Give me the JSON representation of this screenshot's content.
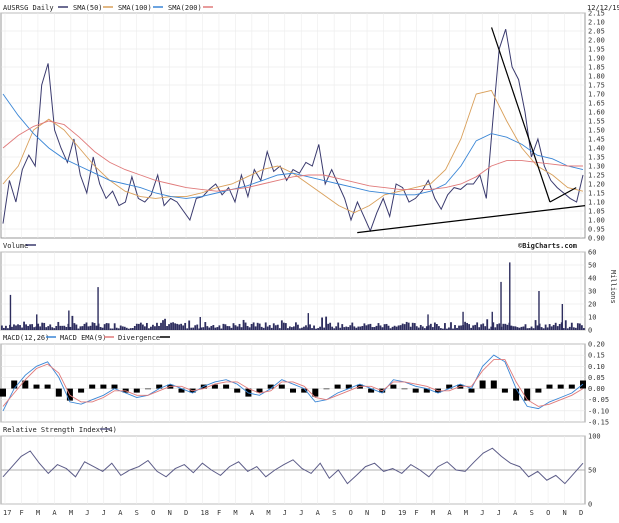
{
  "header": {
    "ticker": "AUSRSG Daily",
    "legend": [
      {
        "label": "SMA(50)",
        "color": "#d9a05b"
      },
      {
        "label": "SMA(100)",
        "color": "#3a86d6"
      },
      {
        "label": "SMA(200)",
        "color": "#e07a7a"
      }
    ],
    "date": "12/12/19"
  },
  "panels": {
    "volume": {
      "title": "Volume",
      "brand": "©BigCharts.com",
      "unit": "Millions"
    },
    "macd": {
      "legend": [
        {
          "label": "MACD(12,26)",
          "color": "#3a86d6"
        },
        {
          "label": "MACD EMA(9)",
          "color": "#e07a7a"
        },
        {
          "label": "Divergence",
          "color": "#000000"
        }
      ]
    },
    "rsi": {
      "title": "Relative Strength Index(14)"
    }
  },
  "chart_data": [
    {
      "type": "line",
      "panel": "price",
      "ylim": [
        0.9,
        2.15
      ],
      "yticks": [
        "2.15",
        "2.10",
        "2.05",
        "2.00",
        "1.95",
        "1.90",
        "1.85",
        "1.80",
        "1.75",
        "1.70",
        "1.65",
        "1.60",
        "1.55",
        "1.50",
        "1.45",
        "1.40",
        "1.35",
        "1.30",
        "1.25",
        "1.20",
        "1.15",
        "1.10",
        "1.05",
        "1.00",
        "0.95",
        "0.90"
      ],
      "xticks": [
        "17",
        "F",
        "M",
        "A",
        "M",
        "J",
        "J",
        "A",
        "S",
        "O",
        "N",
        "D",
        "18",
        "F",
        "M",
        "A",
        "M",
        "J",
        "J",
        "A",
        "S",
        "O",
        "N",
        "D",
        "19",
        "F",
        "M",
        "A",
        "M",
        "J",
        "J",
        "A",
        "S",
        "O",
        "N",
        "D"
      ],
      "series": [
        {
          "name": "AUSRSG",
          "color": "#3a3a6e",
          "values": [
            0.98,
            1.22,
            1.1,
            1.28,
            1.36,
            1.3,
            1.75,
            1.87,
            1.5,
            1.4,
            1.32,
            1.45,
            1.25,
            1.15,
            1.35,
            1.2,
            1.12,
            1.16,
            1.08,
            1.1,
            1.24,
            1.12,
            1.1,
            1.14,
            1.25,
            1.08,
            1.12,
            1.1,
            1.05,
            1.0,
            1.12,
            1.13,
            1.17,
            1.2,
            1.14,
            1.18,
            1.1,
            1.25,
            1.13,
            1.28,
            1.22,
            1.38,
            1.27,
            1.3,
            1.22,
            1.28,
            1.26,
            1.32,
            1.3,
            1.42,
            1.2,
            1.28,
            1.2,
            1.12,
            1.0,
            1.1,
            1.02,
            0.94,
            1.04,
            1.12,
            1.02,
            1.2,
            1.18,
            1.1,
            1.12,
            1.16,
            1.22,
            1.12,
            1.06,
            1.14,
            1.18,
            1.17,
            1.2,
            1.2,
            1.25,
            1.12,
            1.55,
            1.95,
            2.06,
            1.85,
            1.78,
            1.6,
            1.35,
            1.45,
            1.3,
            1.22,
            1.18,
            1.15,
            1.12,
            1.1,
            1.25
          ]
        },
        {
          "name": "SMA(50)",
          "color": "#d9a05b",
          "values": [
            1.2,
            1.3,
            1.5,
            1.56,
            1.5,
            1.4,
            1.3,
            1.22,
            1.16,
            1.13,
            1.12,
            1.13,
            1.13,
            1.15,
            1.18,
            1.2,
            1.24,
            1.28,
            1.3,
            1.26,
            1.2,
            1.14,
            1.08,
            1.04,
            1.08,
            1.14,
            1.16,
            1.18,
            1.2,
            1.28,
            1.45,
            1.7,
            1.72,
            1.55,
            1.4,
            1.3,
            1.25,
            1.18,
            1.16
          ]
        },
        {
          "name": "SMA(100)",
          "color": "#3a86d6",
          "values": [
            1.7,
            1.58,
            1.48,
            1.4,
            1.34,
            1.3,
            1.26,
            1.22,
            1.2,
            1.18,
            1.15,
            1.13,
            1.12,
            1.13,
            1.15,
            1.17,
            1.19,
            1.22,
            1.25,
            1.26,
            1.24,
            1.22,
            1.2,
            1.18,
            1.16,
            1.15,
            1.14,
            1.14,
            1.16,
            1.2,
            1.3,
            1.44,
            1.48,
            1.46,
            1.42,
            1.36,
            1.34,
            1.3,
            1.28
          ]
        },
        {
          "name": "SMA(200)",
          "color": "#e07a7a",
          "values": [
            1.4,
            1.47,
            1.52,
            1.55,
            1.53,
            1.46,
            1.38,
            1.32,
            1.28,
            1.25,
            1.22,
            1.2,
            1.18,
            1.17,
            1.16,
            1.17,
            1.18,
            1.2,
            1.22,
            1.24,
            1.25,
            1.25,
            1.23,
            1.21,
            1.19,
            1.18,
            1.17,
            1.17,
            1.17,
            1.18,
            1.2,
            1.24,
            1.3,
            1.33,
            1.33,
            1.32,
            1.31,
            1.3,
            1.3
          ]
        }
      ],
      "trendlines": [
        {
          "from": [
            0.61,
            0.93
          ],
          "to": [
            1.0,
            1.08
          ]
        },
        {
          "from": [
            0.84,
            2.07
          ],
          "to": [
            0.94,
            1.1
          ]
        },
        {
          "from": [
            0.94,
            1.1
          ],
          "to": [
            0.985,
            1.18
          ]
        }
      ]
    },
    {
      "type": "bar",
      "panel": "volume",
      "ylim": [
        0,
        60
      ],
      "yticks": [
        "60",
        "50",
        "40",
        "30",
        "20",
        "10",
        "0"
      ],
      "spikes": [
        {
          "x": 0.015,
          "value": 27
        },
        {
          "x": 0.06,
          "value": 12
        },
        {
          "x": 0.115,
          "value": 15
        },
        {
          "x": 0.165,
          "value": 33
        },
        {
          "x": 0.34,
          "value": 10
        },
        {
          "x": 0.525,
          "value": 13
        },
        {
          "x": 0.73,
          "value": 12
        },
        {
          "x": 0.79,
          "value": 14
        },
        {
          "x": 0.84,
          "value": 14
        },
        {
          "x": 0.855,
          "value": 37
        },
        {
          "x": 0.87,
          "value": 52
        },
        {
          "x": 0.92,
          "value": 30
        },
        {
          "x": 0.96,
          "value": 20
        }
      ]
    },
    {
      "type": "line",
      "panel": "macd",
      "ylim": [
        -0.15,
        0.2
      ],
      "yticks": [
        "0.20",
        "0.15",
        "0.10",
        "0.05",
        "0.00",
        "-0.05",
        "-0.10",
        "-0.15"
      ],
      "series": [
        {
          "name": "MACD(12,26)",
          "color": "#3a86d6",
          "values": [
            -0.1,
            0.0,
            0.06,
            0.1,
            0.12,
            0.05,
            -0.06,
            -0.07,
            -0.05,
            -0.03,
            0.0,
            -0.02,
            -0.04,
            -0.03,
            0.0,
            0.02,
            0.0,
            -0.02,
            0.01,
            0.03,
            0.04,
            0.02,
            -0.02,
            -0.03,
            0.0,
            0.04,
            0.02,
            0.0,
            -0.06,
            -0.05,
            -0.02,
            0.0,
            0.02,
            0.0,
            -0.02,
            0.04,
            0.03,
            0.01,
            0.0,
            -0.02,
            0.0,
            0.02,
            0.0,
            0.1,
            0.15,
            0.12,
            0.0,
            -0.08,
            -0.09,
            -0.06,
            -0.04,
            -0.02,
            0.02
          ]
        },
        {
          "name": "MACD EMA(9)",
          "color": "#e07a7a",
          "values": [
            -0.08,
            -0.02,
            0.04,
            0.09,
            0.11,
            0.07,
            -0.03,
            -0.06,
            -0.06,
            -0.04,
            -0.01,
            -0.01,
            -0.03,
            -0.03,
            -0.01,
            0.01,
            0.01,
            -0.01,
            0.0,
            0.02,
            0.03,
            0.03,
            0.0,
            -0.02,
            -0.01,
            0.03,
            0.03,
            0.01,
            -0.04,
            -0.05,
            -0.03,
            -0.01,
            0.01,
            0.01,
            -0.01,
            0.03,
            0.03,
            0.02,
            0.01,
            -0.01,
            -0.01,
            0.01,
            0.01,
            0.08,
            0.13,
            0.13,
            0.03,
            -0.05,
            -0.08,
            -0.07,
            -0.05,
            -0.03,
            0.0
          ]
        }
      ]
    },
    {
      "type": "line",
      "panel": "rsi",
      "ylim": [
        0,
        100
      ],
      "yticks": [
        "100",
        "50",
        "0"
      ],
      "series": [
        {
          "name": "RSI(14)",
          "color": "#5c5c88",
          "values": [
            40,
            55,
            70,
            78,
            60,
            45,
            58,
            52,
            40,
            62,
            55,
            48,
            60,
            42,
            50,
            55,
            64,
            48,
            40,
            52,
            58,
            46,
            60,
            50,
            42,
            55,
            62,
            48,
            55,
            40,
            50,
            58,
            65,
            52,
            45,
            60,
            38,
            50,
            30,
            42,
            55,
            60,
            48,
            52,
            45,
            58,
            50,
            40,
            55,
            62,
            50,
            48,
            62,
            75,
            82,
            70,
            60,
            55,
            40,
            48,
            35,
            42,
            30,
            45,
            60
          ]
        }
      ]
    }
  ]
}
